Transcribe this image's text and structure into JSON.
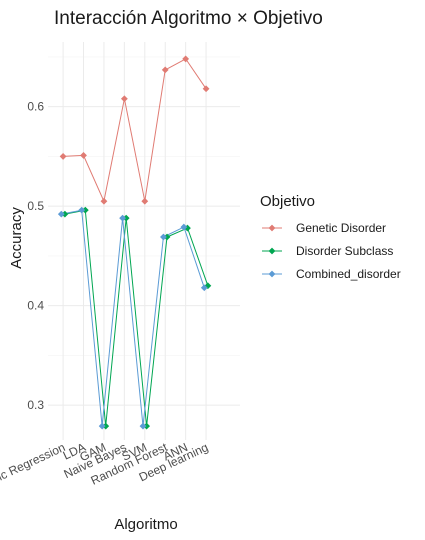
{
  "chart_data": {
    "type": "line",
    "title": "Interacción Algoritmo × Objetivo",
    "xlabel": "Algoritmo",
    "ylabel": "Accuracy",
    "categories": [
      "Logistic Regression",
      "LDA",
      "GAM",
      "Naive Bayes",
      "SVM",
      "Random Forest",
      "ANN",
      "Deep learning"
    ],
    "category_labels_visible": [
      "ic Regression",
      "LDA",
      "GAM",
      "Naive Bayes",
      "SVM",
      "Random Forest",
      "ANN",
      "Deep learning"
    ],
    "ylim": [
      0.265,
      0.665
    ],
    "yticks": [
      0.3,
      0.4,
      0.5,
      0.6
    ],
    "ytick_labels": [
      "0.3",
      "0.4",
      "0.5",
      "0.6"
    ],
    "grid": true,
    "legend": {
      "title": "Objetivo",
      "placement": "right"
    },
    "series": [
      {
        "name": "Genetic Disorder",
        "color": "#E07B73",
        "values": [
          0.55,
          0.551,
          0.505,
          0.608,
          0.505,
          0.637,
          0.648,
          0.618
        ]
      },
      {
        "name": "Disorder Subclass",
        "color": "#00A651",
        "values": [
          0.492,
          0.496,
          0.279,
          0.488,
          0.279,
          0.469,
          0.478,
          0.42
        ]
      },
      {
        "name": "Combined_disorder",
        "color": "#5B9BD5",
        "values": [
          0.492,
          0.496,
          0.279,
          0.488,
          0.279,
          0.469,
          0.479,
          0.418
        ]
      }
    ]
  }
}
